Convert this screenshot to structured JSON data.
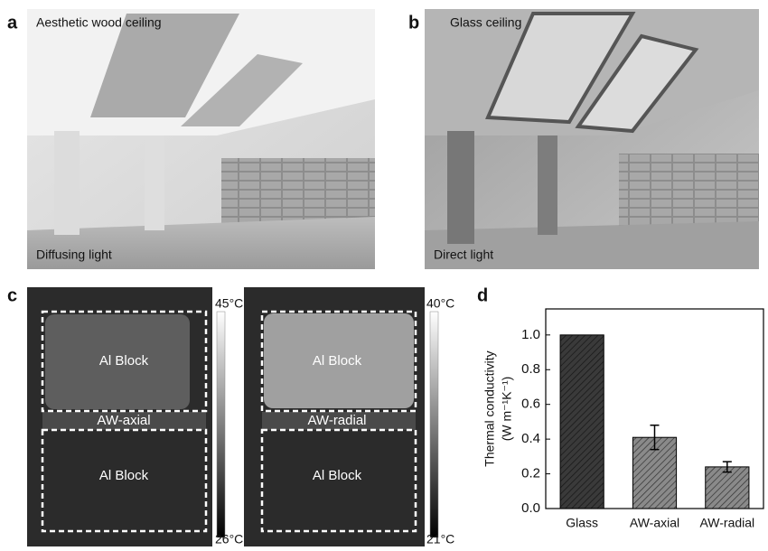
{
  "panels": {
    "a": {
      "label": "a",
      "title": "Aesthetic wood ceiling",
      "caption": "Diffusing light"
    },
    "b": {
      "label": "b",
      "title": "Glass ceiling",
      "caption": "Direct light"
    },
    "c": {
      "label": "c",
      "left": {
        "top_block": "Al Block",
        "interlayer": "AW-axial",
        "bottom_block": "Al Block",
        "scale_max": "45°C",
        "scale_min": "26°C"
      },
      "right": {
        "top_block": "Al Block",
        "interlayer": "AW-radial",
        "bottom_block": "Al Block",
        "scale_max": "40°C",
        "scale_min": "21°C"
      }
    },
    "d": {
      "label": "d"
    }
  },
  "chart_data": {
    "type": "bar",
    "y_label": [
      "Thermal conductivity",
      "(W m⁻¹K⁻¹)"
    ],
    "categories": [
      "Glass",
      "AW-axial",
      "AW-radial"
    ],
    "values": [
      1.0,
      0.41,
      0.24
    ],
    "errors": [
      0,
      0.07,
      0.03
    ],
    "colors": [
      "#3a3a3a",
      "#8a8a8a",
      "#8a8a8a"
    ],
    "ylim": [
      0,
      1.15
    ],
    "yticks": [
      {
        "value": 0,
        "label": "0.0"
      },
      0.2,
      0.4,
      0.6,
      0.8,
      {
        "value": 1,
        "label": "1.0"
      }
    ]
  }
}
